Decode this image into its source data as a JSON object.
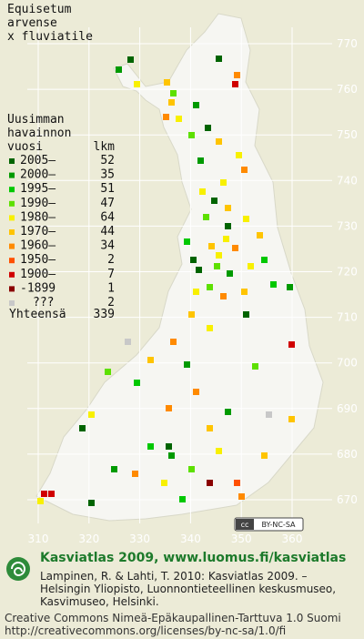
{
  "title": [
    "Equisetum",
    "arvense",
    "x fluviatile"
  ],
  "legend": {
    "heading": [
      "Uusimman",
      "havainnon"
    ],
    "col_period": "vuosi",
    "col_count": "lkm",
    "rows": [
      {
        "label": "2005–",
        "count": 52,
        "color": "#006400"
      },
      {
        "label": "2000–",
        "count": 35,
        "color": "#009a00"
      },
      {
        "label": "1995–",
        "count": 51,
        "color": "#00c800"
      },
      {
        "label": "1990–",
        "count": 47,
        "color": "#5de000"
      },
      {
        "label": "1980–",
        "count": 64,
        "color": "#f8f000"
      },
      {
        "label": "1970–",
        "count": 44,
        "color": "#ffc400"
      },
      {
        "label": "1960–",
        "count": 34,
        "color": "#ff8a00"
      },
      {
        "label": "1950–",
        "count": 2,
        "color": "#ff5000"
      },
      {
        "label": "1900–",
        "count": 7,
        "color": "#d00000"
      },
      {
        "label": "-1899",
        "count": 1,
        "color": "#8a0000"
      },
      {
        "label": "???",
        "count": 2,
        "color": "#c8c8c8"
      }
    ],
    "total": {
      "label": "Yhteensä",
      "count": 339
    }
  },
  "grid": {
    "y_labels": [
      770,
      760,
      750,
      740,
      730,
      720,
      710,
      700,
      690,
      680,
      670
    ],
    "x_labels": [
      310,
      320,
      330,
      340,
      350,
      360
    ]
  },
  "badge": "BY-NC-SA",
  "footer": {
    "brand": "Kasviatlas 2009, www.luomus.fi/kasviatlas",
    "citation": [
      "Lampinen, R. & Lahti, T. 2010: Kasviatlas 2009. –",
      "Helsingin Yliopisto, Luonnontieteellinen keskusmuseo,",
      "Kasvimuseo, Helsinki."
    ],
    "license": [
      "Creative Commons Nimeä-Epäkaupallinen-Tarttuva 1.0 Suomi",
      "http://creativecommons.org/licenses/by-nc-sa/1.0/fi"
    ]
  }
}
